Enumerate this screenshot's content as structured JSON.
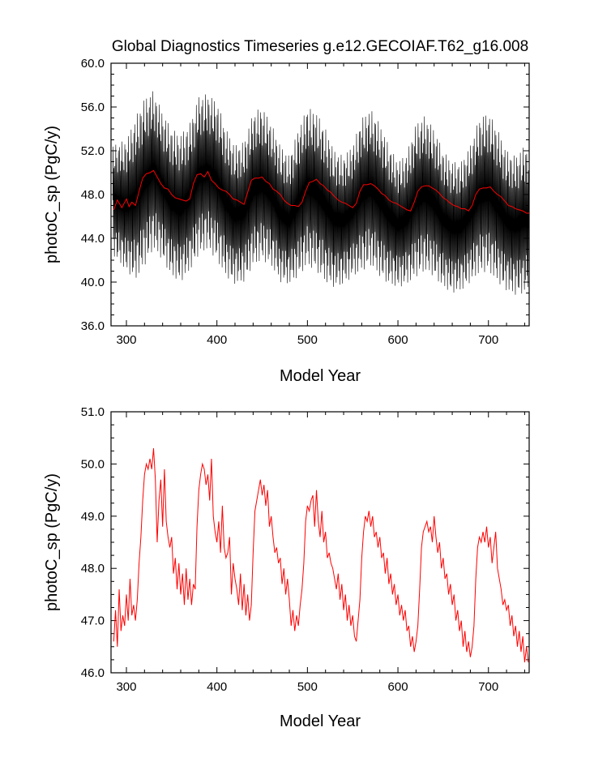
{
  "chart_data": [
    {
      "type": "line",
      "title": "Global Diagnostics Timeseries g.e12.GECOIAF.T62_g16.008",
      "xlabel": "Model Year",
      "ylabel": "photoC_sp (PgC/y)",
      "xlim": [
        283,
        745
      ],
      "ylim": [
        36.0,
        60.0
      ],
      "xticks": [
        300,
        400,
        500,
        600,
        700
      ],
      "xtick_labels": [
        "300",
        "400",
        "500",
        "600",
        "700"
      ],
      "yticks": [
        36.0,
        40.0,
        44.0,
        48.0,
        52.0,
        56.0,
        60.0
      ],
      "ytick_labels": [
        "36.0",
        "40.0",
        "44.0",
        "48.0",
        "52.0",
        "56.0",
        "60.0"
      ],
      "grid": false,
      "series": [
        {
          "color": "#000000",
          "style": "monthly",
          "x": [
            285,
            300,
            310,
            320,
            330,
            340,
            350,
            360,
            370,
            380,
            390,
            400,
            410,
            420,
            430,
            440,
            450,
            460,
            470,
            480,
            490,
            500,
            510,
            520,
            530,
            540,
            550,
            560,
            570,
            580,
            590,
            600,
            610,
            620,
            630,
            640,
            650,
            660,
            670,
            680,
            690,
            700,
            710,
            720,
            730,
            740,
            745
          ],
          "upper": [
            52.5,
            53.0,
            55.0,
            56.8,
            57.5,
            55.5,
            54.0,
            53.5,
            54.5,
            57.0,
            57.2,
            56.5,
            54.0,
            52.5,
            52.8,
            55.5,
            56.0,
            54.5,
            52.5,
            51.5,
            54.0,
            56.0,
            55.5,
            54.0,
            52.0,
            51.5,
            52.5,
            55.0,
            55.8,
            54.5,
            52.5,
            51.0,
            51.8,
            54.5,
            55.2,
            54.0,
            52.0,
            51.0,
            51.0,
            52.5,
            55.0,
            55.5,
            54.0,
            52.0,
            51.5,
            52.5,
            52.0
          ],
          "lower": [
            42.5,
            41.0,
            40.2,
            41.5,
            43.0,
            42.0,
            40.5,
            40.0,
            41.0,
            42.5,
            43.0,
            42.0,
            40.5,
            39.8,
            40.0,
            41.5,
            42.0,
            41.5,
            40.0,
            39.8,
            40.5,
            41.5,
            41.0,
            40.0,
            39.5,
            39.8,
            40.5,
            41.0,
            41.5,
            40.5,
            39.8,
            39.5,
            39.8,
            40.5,
            41.0,
            40.5,
            39.5,
            39.0,
            39.2,
            40.0,
            40.8,
            41.0,
            40.0,
            39.2,
            38.8,
            39.0,
            39.5
          ]
        },
        {
          "color": "#ff0000",
          "style": "annual mean",
          "x": [
            286,
            290,
            295,
            300,
            303,
            306,
            310,
            314,
            318,
            322,
            326,
            330,
            334,
            338,
            342,
            346,
            350,
            354,
            358,
            362,
            366,
            370,
            374,
            378,
            382,
            386,
            390,
            394,
            398,
            402,
            406,
            410,
            414,
            418,
            422,
            426,
            430,
            434,
            438,
            442,
            446,
            450,
            454,
            458,
            462,
            466,
            470,
            474,
            478,
            482,
            486,
            490,
            494,
            498,
            502,
            506,
            510,
            514,
            518,
            522,
            526,
            530,
            534,
            538,
            542,
            546,
            550,
            554,
            558,
            562,
            566,
            570,
            574,
            578,
            582,
            586,
            590,
            594,
            598,
            602,
            606,
            610,
            614,
            618,
            622,
            626,
            630,
            634,
            638,
            642,
            646,
            650,
            654,
            658,
            662,
            666,
            670,
            674,
            678,
            682,
            686,
            690,
            694,
            698,
            702,
            706,
            710,
            714,
            718,
            722,
            726,
            730,
            734,
            738,
            742,
            745
          ],
          "values": [
            46.6,
            47.5,
            46.8,
            47.6,
            46.9,
            47.3,
            47.0,
            48.3,
            49.5,
            49.9,
            50.0,
            50.2,
            49.6,
            49.0,
            48.6,
            48.5,
            48.0,
            47.7,
            47.6,
            47.5,
            47.4,
            47.6,
            49.0,
            49.8,
            49.9,
            49.6,
            50.1,
            49.3,
            49.0,
            48.6,
            48.4,
            48.3,
            48.0,
            47.6,
            47.5,
            47.3,
            47.1,
            48.2,
            49.3,
            49.5,
            49.5,
            49.6,
            49.2,
            49.0,
            48.5,
            48.3,
            48.0,
            47.5,
            47.2,
            47.0,
            47.0,
            46.9,
            47.3,
            48.3,
            49.1,
            49.2,
            49.4,
            49.0,
            48.8,
            48.4,
            48.2,
            47.8,
            47.5,
            47.3,
            47.2,
            47.0,
            46.8,
            47.2,
            48.3,
            48.9,
            48.9,
            49.0,
            48.8,
            48.5,
            48.1,
            47.9,
            47.5,
            47.3,
            47.2,
            47.0,
            46.8,
            46.6,
            46.5,
            47.3,
            48.3,
            48.7,
            48.8,
            48.8,
            48.6,
            48.4,
            48.1,
            47.7,
            47.5,
            47.2,
            47.0,
            46.9,
            46.7,
            46.7,
            46.5,
            47.0,
            48.0,
            48.5,
            48.6,
            48.6,
            48.7,
            48.3,
            48.0,
            47.8,
            47.4,
            47.0,
            46.9,
            46.7,
            46.6,
            46.5,
            46.3,
            46.3
          ]
        }
      ]
    },
    {
      "type": "line",
      "xlabel": "Model Year",
      "ylabel": "photoC_sp (PgC/y)",
      "xlim": [
        283,
        745
      ],
      "ylim": [
        46.0,
        51.0
      ],
      "xticks": [
        300,
        400,
        500,
        600,
        700
      ],
      "xtick_labels": [
        "300",
        "400",
        "500",
        "600",
        "700"
      ],
      "yticks": [
        46.0,
        47.0,
        48.0,
        49.0,
        50.0,
        51.0
      ],
      "ytick_labels": [
        "46.0",
        "47.0",
        "48.0",
        "49.0",
        "50.0",
        "51.0"
      ],
      "grid": false,
      "series": [
        {
          "color": "#ff0000",
          "x": [
            286,
            288,
            290,
            292,
            294,
            296,
            298,
            300,
            302,
            304,
            306,
            308,
            310,
            312,
            314,
            316,
            318,
            320,
            322,
            324,
            326,
            328,
            330,
            332,
            334,
            336,
            338,
            340,
            342,
            344,
            346,
            348,
            350,
            352,
            354,
            356,
            358,
            360,
            362,
            364,
            366,
            368,
            370,
            372,
            374,
            376,
            378,
            380,
            382,
            384,
            386,
            388,
            390,
            392,
            394,
            396,
            398,
            400,
            402,
            404,
            406,
            408,
            410,
            412,
            414,
            416,
            418,
            420,
            422,
            424,
            426,
            428,
            430,
            432,
            434,
            436,
            438,
            440,
            442,
            444,
            446,
            448,
            450,
            452,
            454,
            456,
            458,
            460,
            462,
            464,
            466,
            468,
            470,
            472,
            474,
            476,
            478,
            480,
            482,
            484,
            486,
            488,
            490,
            492,
            494,
            496,
            498,
            500,
            502,
            504,
            506,
            508,
            510,
            512,
            514,
            516,
            518,
            520,
            522,
            524,
            526,
            528,
            530,
            532,
            534,
            536,
            538,
            540,
            542,
            544,
            546,
            548,
            550,
            552,
            554,
            556,
            558,
            560,
            562,
            564,
            566,
            568,
            570,
            572,
            574,
            576,
            578,
            580,
            582,
            584,
            586,
            588,
            590,
            592,
            594,
            596,
            598,
            600,
            602,
            604,
            606,
            608,
            610,
            612,
            614,
            616,
            618,
            620,
            622,
            624,
            626,
            628,
            630,
            632,
            634,
            636,
            638,
            640,
            642,
            644,
            646,
            648,
            650,
            652,
            654,
            656,
            658,
            660,
            662,
            664,
            666,
            668,
            670,
            672,
            674,
            676,
            678,
            680,
            682,
            684,
            686,
            688,
            690,
            692,
            694,
            696,
            698,
            700,
            702,
            704,
            706,
            708,
            710,
            712,
            714,
            716,
            718,
            720,
            722,
            724,
            726,
            728,
            730,
            732,
            734,
            736,
            738,
            740,
            742,
            744
          ],
          "values": [
            46.6,
            47.2,
            46.5,
            47.6,
            46.8,
            47.1,
            46.9,
            47.5,
            47.0,
            47.8,
            47.1,
            47.3,
            47.0,
            47.4,
            48.1,
            48.6,
            49.3,
            49.8,
            50.0,
            49.9,
            50.1,
            49.9,
            50.3,
            49.7,
            48.5,
            49.3,
            49.7,
            48.8,
            49.9,
            48.9,
            48.6,
            48.4,
            48.6,
            47.9,
            48.2,
            47.6,
            48.1,
            47.5,
            47.9,
            47.3,
            48.0,
            47.4,
            47.8,
            47.3,
            47.7,
            47.6,
            48.8,
            49.5,
            49.8,
            50.0,
            49.9,
            49.6,
            49.8,
            49.3,
            50.1,
            49.0,
            48.7,
            48.5,
            48.9,
            48.3,
            49.2,
            48.4,
            48.2,
            48.3,
            48.6,
            47.5,
            48.1,
            47.8,
            47.6,
            47.3,
            47.9,
            47.2,
            47.7,
            47.1,
            47.5,
            47.0,
            47.3,
            48.3,
            49.1,
            49.3,
            49.5,
            49.7,
            49.4,
            49.6,
            49.2,
            49.5,
            48.8,
            49.0,
            48.6,
            48.3,
            48.4,
            48.1,
            48.2,
            47.7,
            48.0,
            47.5,
            47.8,
            47.4,
            46.9,
            47.2,
            46.8,
            47.1,
            46.9,
            47.3,
            47.6,
            48.1,
            48.9,
            49.2,
            49.1,
            49.3,
            49.4,
            48.8,
            49.5,
            48.9,
            48.6,
            49.1,
            48.5,
            48.7,
            48.2,
            48.3,
            48.1,
            48.0,
            47.8,
            47.6,
            47.9,
            47.4,
            47.7,
            47.2,
            47.5,
            47.0,
            47.3,
            46.9,
            47.1,
            46.7,
            46.6,
            47.0,
            47.4,
            48.2,
            48.7,
            49.0,
            48.9,
            49.1,
            48.8,
            49.0,
            48.6,
            48.7,
            48.4,
            48.6,
            48.2,
            48.3,
            47.9,
            48.2,
            47.7,
            47.9,
            47.5,
            47.7,
            47.3,
            47.5,
            47.1,
            47.3,
            47.0,
            47.2,
            46.8,
            46.9,
            46.5,
            46.7,
            46.4,
            46.6,
            46.9,
            47.6,
            48.4,
            48.7,
            48.8,
            48.9,
            48.7,
            48.8,
            48.5,
            49.0,
            48.6,
            48.3,
            48.5,
            48.0,
            48.2,
            47.8,
            47.9,
            47.5,
            47.7,
            47.3,
            47.5,
            47.0,
            47.2,
            46.8,
            47.0,
            46.5,
            46.8,
            46.4,
            46.6,
            46.3,
            46.5,
            46.9,
            47.8,
            48.4,
            48.6,
            48.5,
            48.7,
            48.5,
            48.8,
            48.4,
            48.6,
            48.1,
            48.4,
            48.7,
            48.0,
            47.8,
            47.6,
            47.3,
            47.4,
            47.2,
            47.3,
            46.9,
            47.1,
            46.7,
            46.9,
            46.5,
            46.8,
            46.4,
            46.7,
            46.2,
            46.5,
            46.2
          ]
        }
      ]
    }
  ]
}
